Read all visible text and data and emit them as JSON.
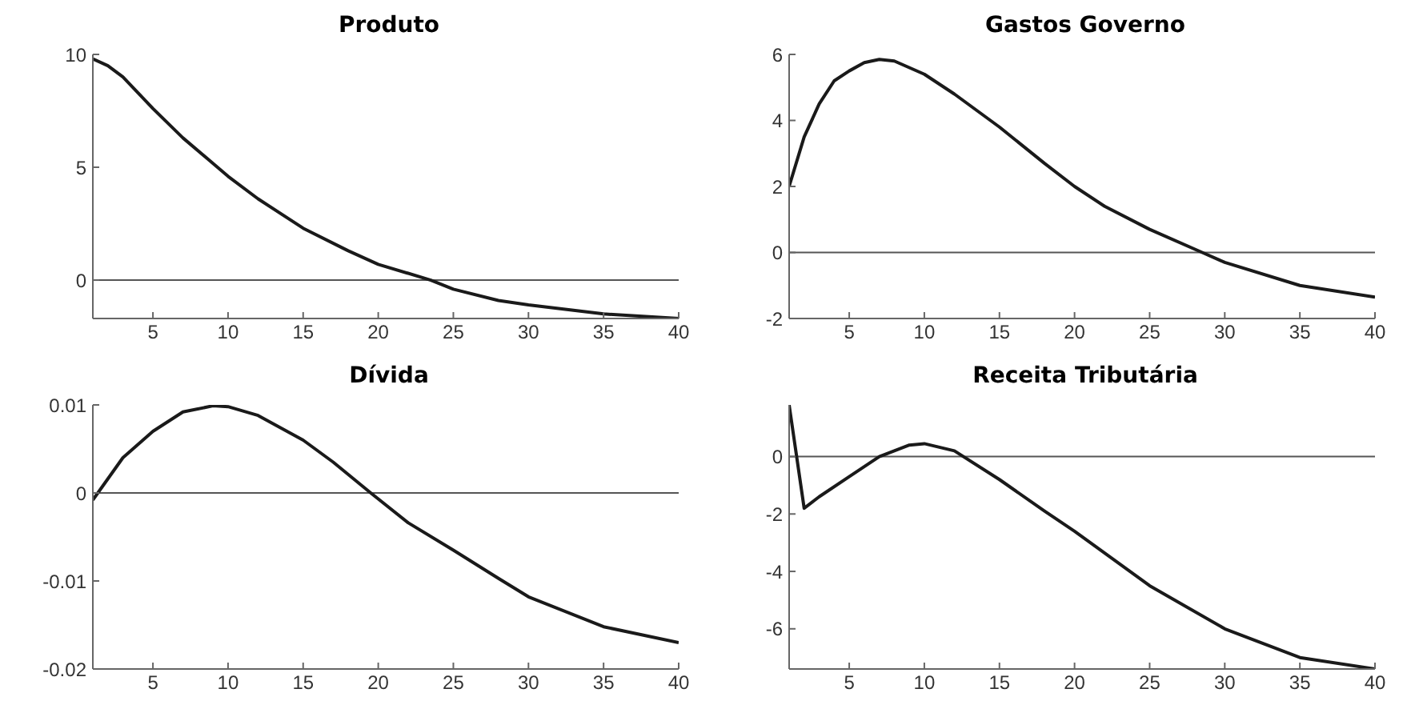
{
  "chart_data": [
    {
      "type": "line",
      "title": "Produto",
      "x": [
        1,
        2,
        3,
        5,
        7,
        10,
        12,
        15,
        18,
        20,
        23.5,
        25,
        28,
        30,
        35,
        40
      ],
      "series": [
        {
          "color": "#1a1a1a",
          "values": [
            9.8,
            9.5,
            9,
            7.6,
            6.3,
            4.6,
            3.6,
            2.3,
            1.3,
            0.7,
            0,
            -0.4,
            -0.9,
            -1.1,
            -1.5,
            -1.7
          ]
        }
      ],
      "xlim": [
        1,
        40
      ],
      "xticks": [
        5,
        10,
        15,
        20,
        25,
        30,
        35,
        40
      ],
      "ylim": [
        -1.7,
        10
      ],
      "yticks": [
        0,
        5,
        10
      ],
      "ref_lines": [
        {
          "axis": "y",
          "value": 0,
          "color": "#555555"
        }
      ]
    },
    {
      "type": "line",
      "title": "Gastos Governo",
      "x": [
        1,
        2,
        3,
        4,
        5,
        6,
        7,
        8,
        10,
        12,
        15,
        18,
        20,
        22,
        25,
        28.5,
        30,
        35,
        40
      ],
      "series": [
        {
          "color": "#1a1a1a",
          "values": [
            2,
            3.5,
            4.5,
            5.2,
            5.5,
            5.75,
            5.85,
            5.8,
            5.4,
            4.8,
            3.8,
            2.7,
            2,
            1.4,
            0.7,
            0,
            -0.3,
            -1,
            -1.35
          ]
        }
      ],
      "xlim": [
        1,
        40
      ],
      "xticks": [
        5,
        10,
        15,
        20,
        25,
        30,
        35,
        40
      ],
      "ylim": [
        -2,
        6
      ],
      "yticks": [
        -2,
        0,
        2,
        4,
        6
      ],
      "ref_lines": [
        {
          "axis": "y",
          "value": 0,
          "color": "#555555"
        }
      ]
    },
    {
      "type": "line",
      "title": "Dívida",
      "x": [
        1,
        3,
        5,
        7,
        9,
        10,
        12,
        15,
        17,
        19.5,
        22,
        25,
        28,
        30,
        35,
        40
      ],
      "series": [
        {
          "color": "#1a1a1a",
          "values": [
            -0.0008,
            0.004,
            0.007,
            0.0092,
            0.0099,
            0.0098,
            0.0088,
            0.006,
            0.0035,
            0,
            -0.0034,
            -0.0065,
            -0.0097,
            -0.0118,
            -0.0152,
            -0.017
          ]
        }
      ],
      "xlim": [
        1,
        40
      ],
      "xticks": [
        5,
        10,
        15,
        20,
        25,
        30,
        35,
        40
      ],
      "ylim": [
        -0.02,
        0.01
      ],
      "yticks": [
        -0.02,
        -0.01,
        0,
        0.01
      ],
      "ref_lines": [
        {
          "axis": "y",
          "value": 0,
          "color": "#555555"
        }
      ]
    },
    {
      "type": "line",
      "title": "Receita Tributária",
      "x": [
        1,
        2,
        3,
        5,
        7,
        9,
        10,
        12,
        15,
        18,
        20,
        25,
        30,
        35,
        40
      ],
      "series": [
        {
          "color": "#1a1a1a",
          "values": [
            1.8,
            -1.8,
            -1.4,
            -0.7,
            0,
            0.4,
            0.45,
            0.2,
            -0.8,
            -1.9,
            -2.6,
            -4.5,
            -6,
            -7,
            -7.4
          ]
        }
      ],
      "xlim": [
        1,
        40
      ],
      "xticks": [
        5,
        10,
        15,
        20,
        25,
        30,
        35,
        40
      ],
      "ylim": [
        -7.4,
        1.8
      ],
      "yticks": [
        -6,
        -4,
        -2,
        0
      ],
      "ref_lines": [
        {
          "axis": "y",
          "value": 0,
          "color": "#555555"
        }
      ]
    }
  ]
}
